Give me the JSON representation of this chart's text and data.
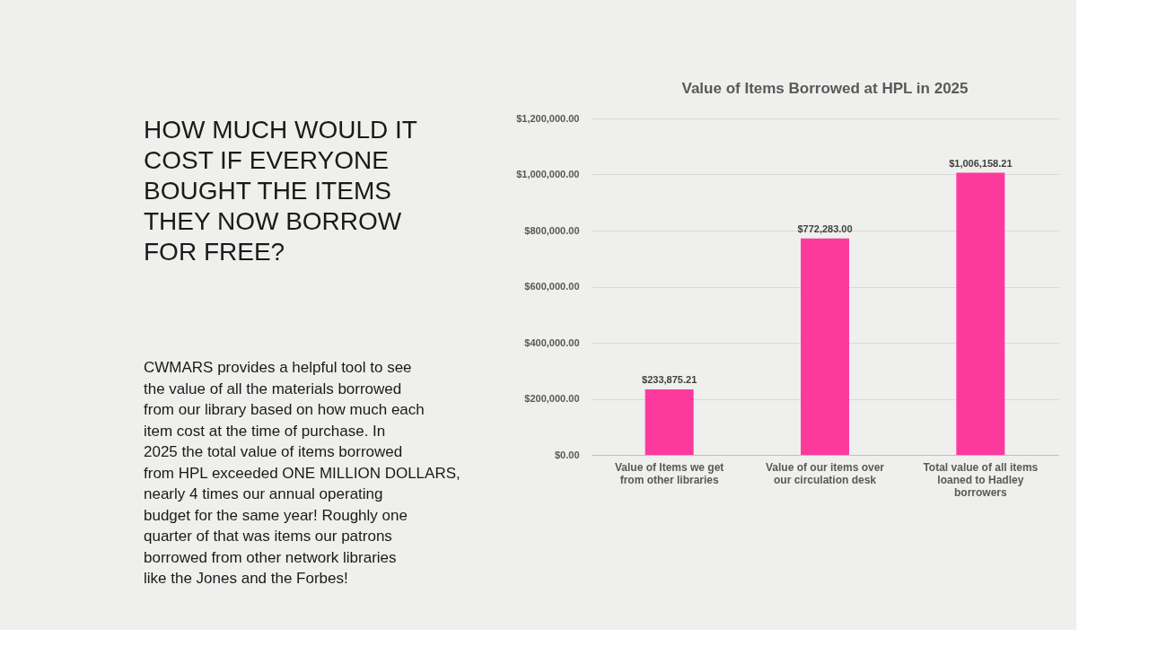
{
  "chart_data": {
    "type": "bar",
    "title": "Value of Items Borrowed at HPL in 2025",
    "categories": [
      "Value of Items we get from other libraries",
      "Value of our items over our circulation desk",
      "Total value of all items loaned to Hadley borrowers"
    ],
    "values": [
      233875.21,
      772283.0,
      1006158.21
    ],
    "value_labels": [
      "$233,875.21",
      "$772,283.00",
      "$1,006,158.21"
    ],
    "color": "#fc3a9e",
    "ylim": [
      0,
      1200000
    ],
    "yticks": [
      {
        "value": 0,
        "label": "$0.00"
      },
      {
        "value": 200000,
        "label": "$200,000.00"
      },
      {
        "value": 400000,
        "label": "$400,000.00"
      },
      {
        "value": 600000,
        "label": "$600,000.00"
      },
      {
        "value": 800000,
        "label": "$800,000.00"
      },
      {
        "value": 1000000,
        "label": "$1,000,000.00"
      },
      {
        "value": 1200000,
        "label": "$1,200,000.00"
      }
    ],
    "grid": "y",
    "annotations": [
      "HOW MUCH WOULD IT COST IF EVERYONE BOUGHT THE ITEMS THEY NOW BORROW FOR FREE?",
      "CWMARS provides a helpful tool to see the value of all the materials borrowed from our library based on how much each item cost at the time of purchase. In 2025 the total value of items borrowed from HPL exceeded ONE MILLION DOLLARS, nearly 4 times our annual operating budget for the same year! Roughly one quarter of that was items our patrons borrowed from other network libraries like the Jones and the Forbes!"
    ]
  }
}
